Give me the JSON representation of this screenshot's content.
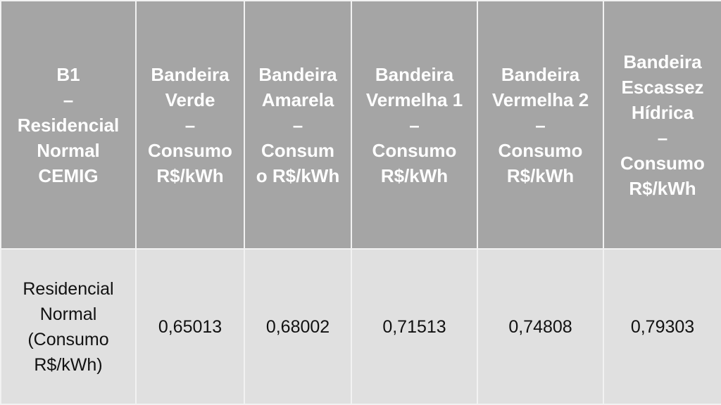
{
  "table": {
    "headers": [
      "B1\n–\nResidencial\nNormal\nCEMIG",
      "Bandeira\nVerde\n–\nConsumo\nR$/kWh",
      "Bandeira\nAmarela\n–\nConsum\no R$/kWh",
      "Bandeira\nVermelha 1\n–\nConsumo\nR$/kWh",
      "Bandeira\nVermelha 2\n–\nConsumo\nR$/kWh",
      "Bandeira\nEscassez\nHídrica\n–\nConsumo\nR$/kWh"
    ],
    "rows": [
      [
        "Residencial\nNormal\n(Consumo\nR$/kWh)",
        "0,65013",
        "0,68002",
        "0,71513",
        "0,74808",
        "0,79303"
      ]
    ]
  },
  "colors": {
    "header_bg": "#a5a5a5",
    "body_bg": "#e0e0e0",
    "header_text": "#ffffff"
  }
}
